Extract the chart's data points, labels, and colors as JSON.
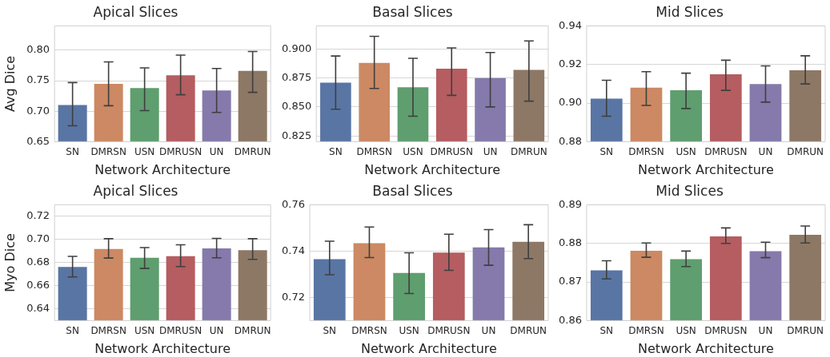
{
  "chart_data": [
    {
      "type": "bar",
      "title": "Apical Slices",
      "xlabel": "Network Architecture",
      "ylabel": "Avg Dice",
      "categories": [
        "SN",
        "DMRSN",
        "USN",
        "DMRUSN",
        "UN",
        "DMRUN"
      ],
      "values": [
        0.71,
        0.745,
        0.738,
        0.759,
        0.734,
        0.766
      ],
      "errors": [
        [
          0.676,
          0.747
        ],
        [
          0.709,
          0.781
        ],
        [
          0.701,
          0.771
        ],
        [
          0.727,
          0.792
        ],
        [
          0.698,
          0.77
        ],
        [
          0.731,
          0.798
        ]
      ],
      "colors": [
        "#5975a4",
        "#cc8963",
        "#5f9e6e",
        "#b55d60",
        "#857aab",
        "#8d7866"
      ],
      "ylim": [
        0.65,
        0.84
      ],
      "yticks": [
        {
          "value": 0.65,
          "label": "0.65"
        },
        {
          "value": 0.7,
          "label": "0.70"
        },
        {
          "value": 0.75,
          "label": "0.75"
        },
        {
          "value": 0.8,
          "label": "0.80"
        }
      ],
      "grid": "y"
    },
    {
      "type": "bar",
      "title": "Basal Slices",
      "xlabel": "Network Architecture",
      "categories": [
        "SN",
        "DMRSN",
        "USN",
        "DMRUSN",
        "UN",
        "DMRUN"
      ],
      "values": [
        0.871,
        0.888,
        0.867,
        0.883,
        0.875,
        0.882
      ],
      "errors": [
        [
          0.848,
          0.894
        ],
        [
          0.866,
          0.911
        ],
        [
          0.842,
          0.892
        ],
        [
          0.86,
          0.901
        ],
        [
          0.85,
          0.897
        ],
        [
          0.855,
          0.907
        ]
      ],
      "colors": [
        "#5975a4",
        "#cc8963",
        "#5f9e6e",
        "#b55d60",
        "#857aab",
        "#8d7866"
      ],
      "ylim": [
        0.82,
        0.92
      ],
      "yticks": [
        0.825,
        {
          "value": 0.85,
          "label": "0.850"
        },
        0.875,
        {
          "value": 0.9,
          "label": "0.900"
        }
      ],
      "grid": "y"
    },
    {
      "type": "bar",
      "title": "Mid Slices",
      "xlabel": "Network Architecture",
      "categories": [
        "SN",
        "DMRSN",
        "USN",
        "DMRUSN",
        "UN",
        "DMRUN"
      ],
      "values": [
        0.9023,
        0.908,
        0.9066,
        0.9149,
        0.9099,
        0.917
      ],
      "errors": [
        [
          0.8932,
          0.9118
        ],
        [
          0.8988,
          0.9163
        ],
        [
          0.8972,
          0.9155
        ],
        [
          0.9066,
          0.9222
        ],
        [
          0.9005,
          0.9193
        ],
        [
          0.9099,
          0.9245
        ]
      ],
      "colors": [
        "#5975a4",
        "#cc8963",
        "#5f9e6e",
        "#b55d60",
        "#857aab",
        "#8d7866"
      ],
      "ylim": [
        0.88,
        0.94
      ],
      "yticks": [
        0.88,
        {
          "value": 0.9,
          "label": "0.90"
        },
        0.92,
        0.94
      ],
      "grid": "y"
    },
    {
      "type": "bar",
      "title": "Apical Slices",
      "xlabel": "Network Architecture",
      "ylabel": "Myo Dice",
      "categories": [
        "SN",
        "DMRSN",
        "USN",
        "DMRUSN",
        "UN",
        "DMRUN"
      ],
      "values": [
        0.6763,
        0.6919,
        0.6842,
        0.6857,
        0.6923,
        0.6908
      ],
      "errors": [
        [
          0.6677,
          0.6855
        ],
        [
          0.684,
          0.7007
        ],
        [
          0.675,
          0.693
        ],
        [
          0.6767,
          0.6954
        ],
        [
          0.6842,
          0.701
        ],
        [
          0.6829,
          0.7007
        ]
      ],
      "colors": [
        "#5975a4",
        "#cc8963",
        "#5f9e6e",
        "#b55d60",
        "#857aab",
        "#8d7866"
      ],
      "ylim": [
        0.63,
        0.73
      ],
      "yticks": [
        0.64,
        0.66,
        0.68,
        {
          "value": 0.7,
          "label": "0.70"
        },
        0.72
      ],
      "grid": "y"
    },
    {
      "type": "bar",
      "title": "Basal Slices",
      "xlabel": "Network Architecture",
      "categories": [
        "SN",
        "DMRSN",
        "USN",
        "DMRUSN",
        "UN",
        "DMRUN"
      ],
      "values": [
        0.7365,
        0.7434,
        0.7306,
        0.7394,
        0.7416,
        0.744
      ],
      "errors": [
        [
          0.7298,
          0.7443
        ],
        [
          0.7372,
          0.7504
        ],
        [
          0.7217,
          0.7393
        ],
        [
          0.7317,
          0.7473
        ],
        [
          0.7339,
          0.7493
        ],
        [
          0.7368,
          0.7514
        ]
      ],
      "colors": [
        "#5975a4",
        "#cc8963",
        "#5f9e6e",
        "#b55d60",
        "#857aab",
        "#8d7866"
      ],
      "ylim": [
        0.71,
        0.76
      ],
      "yticks": [
        0.72,
        0.74,
        0.76
      ],
      "grid": "y"
    },
    {
      "type": "bar",
      "title": "Mid Slices",
      "xlabel": "Network Architecture",
      "categories": [
        "SN",
        "DMRSN",
        "USN",
        "DMRUSN",
        "UN",
        "DMRUN"
      ],
      "values": [
        0.873,
        0.8781,
        0.8759,
        0.8818,
        0.878,
        0.8822
      ],
      "errors": [
        [
          0.8708,
          0.8755
        ],
        [
          0.8764,
          0.8801
        ],
        [
          0.874,
          0.878
        ],
        [
          0.88,
          0.884
        ],
        [
          0.8763,
          0.8803
        ],
        [
          0.8801,
          0.8845
        ]
      ],
      "colors": [
        "#5975a4",
        "#cc8963",
        "#5f9e6e",
        "#b55d60",
        "#857aab",
        "#8d7866"
      ],
      "ylim": [
        0.86,
        0.89
      ],
      "yticks": [
        0.86,
        0.87,
        0.88,
        0.89
      ],
      "grid": "y"
    }
  ]
}
